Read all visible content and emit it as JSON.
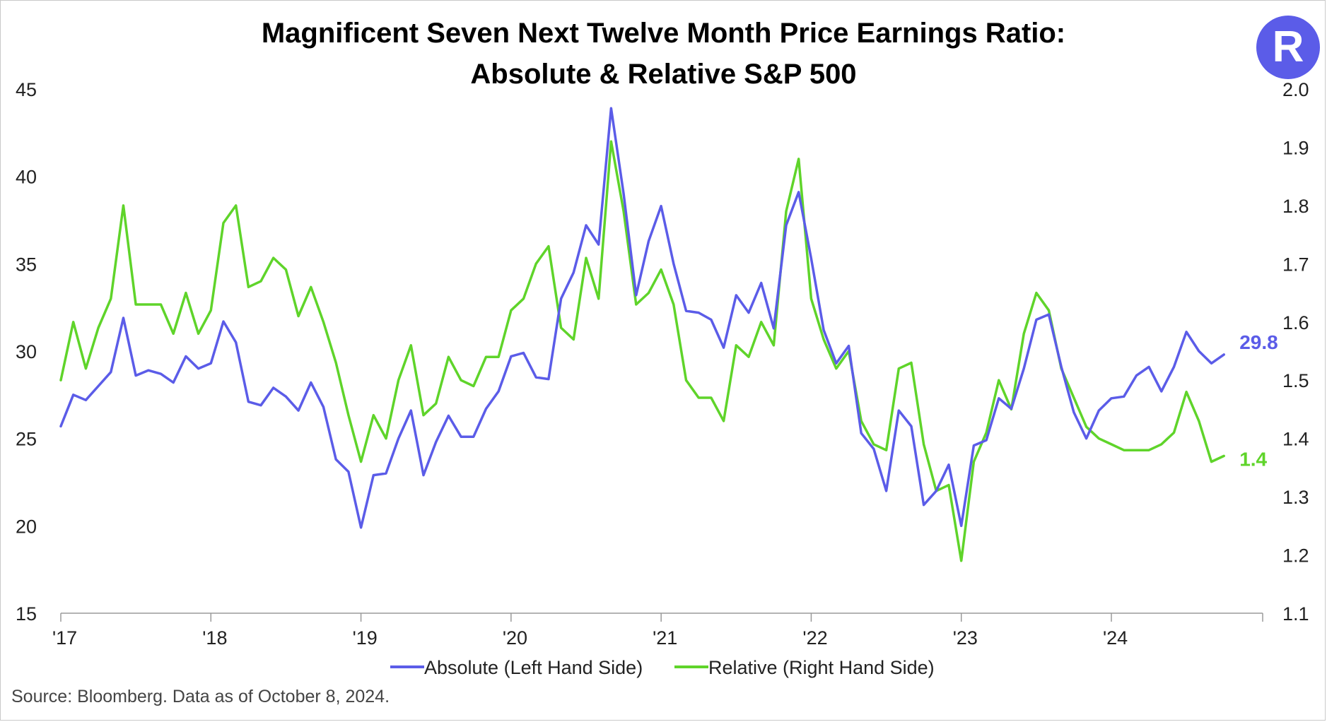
{
  "title_line1": "Magnificent Seven Next Twelve Month Price Earnings Ratio:",
  "title_line2": "Absolute & Relative S&P 500",
  "logo_letter": "R",
  "source": "Source: Bloomberg. Data as of October 8, 2024.",
  "colors": {
    "absolute": "#5b5ce8",
    "relative": "#5fd42a",
    "logo": "#5b5ce8"
  },
  "chart_data": {
    "type": "line",
    "title": "Magnificent Seven Next Twelve Month Price Earnings Ratio: Absolute & Relative S&P 500",
    "x_start": "2017-01",
    "x_step": "month",
    "x_ticks": [
      "'17",
      "'18",
      "'19",
      "'20",
      "'21",
      "'22",
      "'23",
      "'24"
    ],
    "y_left": {
      "ticks": [
        15,
        20,
        25,
        30,
        35,
        40,
        45
      ],
      "ylim": [
        15,
        45
      ]
    },
    "y_right": {
      "ticks": [
        "1.1",
        "1.2",
        "1.3",
        "1.4",
        "1.5",
        "1.6",
        "1.7",
        "1.8",
        "1.9",
        "2.0"
      ],
      "ylim": [
        1.1,
        2.0
      ]
    },
    "legend": {
      "position": "bottom-center"
    },
    "grid": false,
    "series": [
      {
        "name": "Absolute (Left Hand Side)",
        "axis": "left",
        "end_label": "29.8",
        "values": [
          25.7,
          27.5,
          27.2,
          28.0,
          28.8,
          31.9,
          28.6,
          28.9,
          28.7,
          28.2,
          29.7,
          29.0,
          29.3,
          31.7,
          30.5,
          27.1,
          26.9,
          27.9,
          27.4,
          26.6,
          28.2,
          26.8,
          23.8,
          23.1,
          19.9,
          22.9,
          23.0,
          25.0,
          26.6,
          22.9,
          24.8,
          26.3,
          25.1,
          25.1,
          26.7,
          27.7,
          29.7,
          29.9,
          28.5,
          28.4,
          33.0,
          34.5,
          37.2,
          36.1,
          43.9,
          39.0,
          33.2,
          36.3,
          38.3,
          35.0,
          32.3,
          32.2,
          31.8,
          30.2,
          33.2,
          32.2,
          33.9,
          31.3,
          37.2,
          39.1,
          35.3,
          31.2,
          29.3,
          30.3,
          25.3,
          24.4,
          22.0,
          26.6,
          25.7,
          21.2,
          22.0,
          23.5,
          20.0,
          24.6,
          24.9,
          27.3,
          26.7,
          29.0,
          31.8,
          32.1,
          29.1,
          26.5,
          25.0,
          26.6,
          27.3,
          27.4,
          28.6,
          29.1,
          27.7,
          29.1,
          31.1,
          30.0,
          29.3,
          29.8
        ]
      },
      {
        "name": "Relative (Right Hand Side)",
        "axis": "right",
        "end_label": "1.4",
        "values": [
          1.5,
          1.6,
          1.52,
          1.59,
          1.64,
          1.8,
          1.63,
          1.63,
          1.63,
          1.58,
          1.65,
          1.58,
          1.62,
          1.77,
          1.8,
          1.66,
          1.67,
          1.71,
          1.69,
          1.61,
          1.66,
          1.6,
          1.53,
          1.44,
          1.36,
          1.44,
          1.4,
          1.5,
          1.56,
          1.44,
          1.46,
          1.54,
          1.5,
          1.49,
          1.54,
          1.54,
          1.62,
          1.64,
          1.7,
          1.73,
          1.59,
          1.57,
          1.71,
          1.64,
          1.91,
          1.79,
          1.63,
          1.65,
          1.69,
          1.63,
          1.5,
          1.47,
          1.47,
          1.43,
          1.56,
          1.54,
          1.6,
          1.56,
          1.79,
          1.88,
          1.64,
          1.57,
          1.52,
          1.55,
          1.43,
          1.39,
          1.38,
          1.52,
          1.53,
          1.39,
          1.31,
          1.32,
          1.19,
          1.36,
          1.41,
          1.5,
          1.45,
          1.58,
          1.65,
          1.62,
          1.52,
          1.47,
          1.42,
          1.4,
          1.39,
          1.38,
          1.38,
          1.38,
          1.39,
          1.41,
          1.48,
          1.43,
          1.36,
          1.37
        ]
      }
    ]
  }
}
